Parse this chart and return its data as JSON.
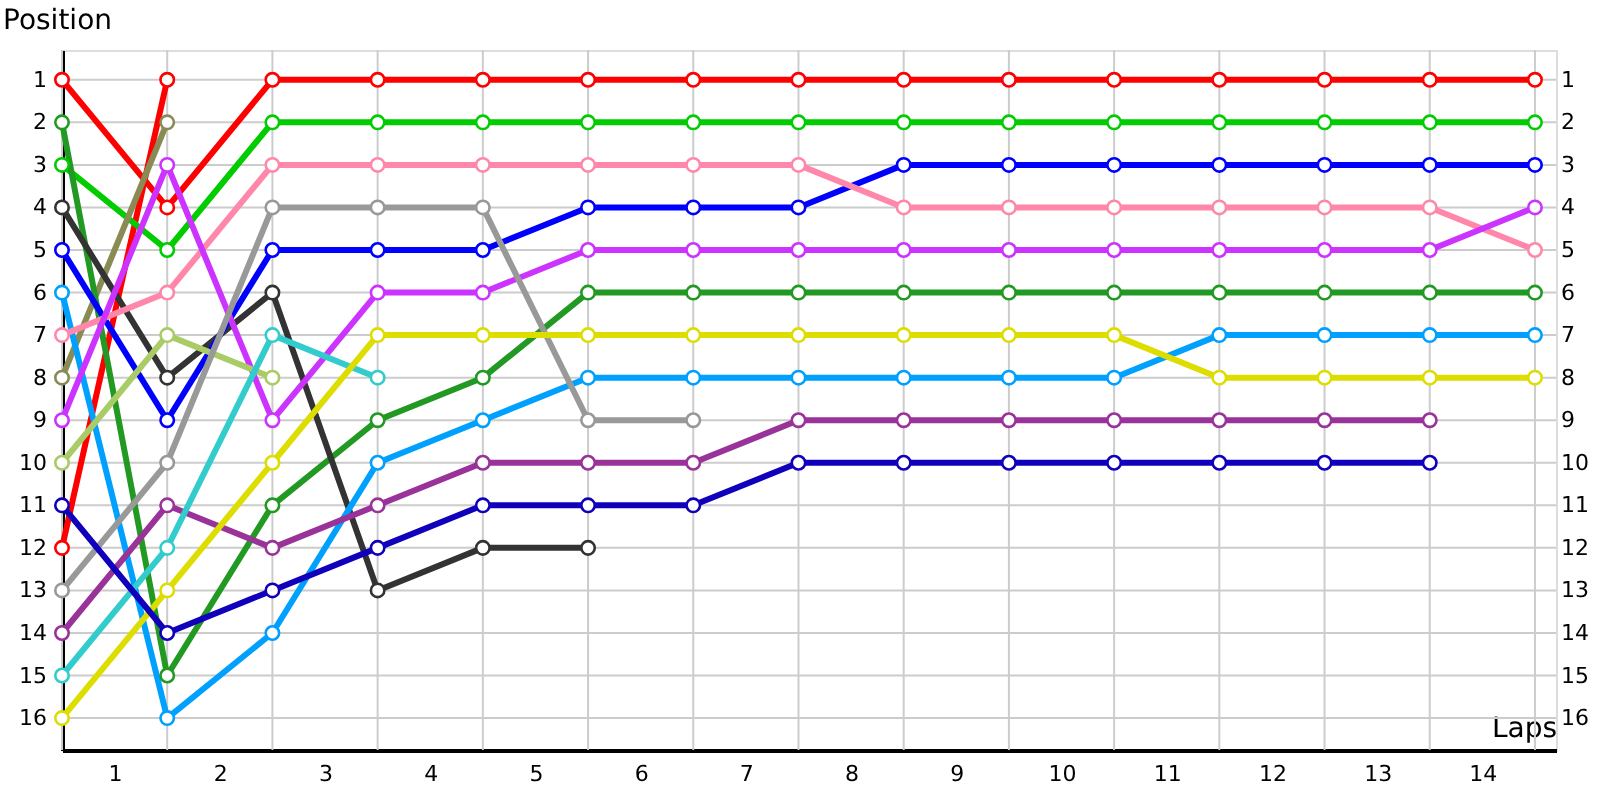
{
  "chart_data": {
    "type": "line",
    "xlabel": "Laps",
    "ylabel": "Position",
    "x": [
      0,
      1,
      2,
      3,
      4,
      5,
      6,
      7,
      8,
      9,
      10,
      11,
      12,
      13,
      14
    ],
    "xlim": [
      0,
      14.2
    ],
    "xticks": [
      {
        "value": 0,
        "label": null
      },
      {
        "value": 0.5,
        "label": "1"
      },
      {
        "value": 1,
        "label": null
      },
      {
        "value": 1.5,
        "label": "2"
      },
      {
        "value": 2,
        "label": null
      },
      {
        "value": 2.5,
        "label": "3"
      },
      {
        "value": 3,
        "label": null
      },
      {
        "value": 3.5,
        "label": "4"
      },
      {
        "value": 4,
        "label": null
      },
      {
        "value": 4.5,
        "label": "5"
      },
      {
        "value": 5,
        "label": null
      },
      {
        "value": 5.5,
        "label": "6"
      },
      {
        "value": 6,
        "label": null
      },
      {
        "value": 6.5,
        "label": "7"
      },
      {
        "value": 7,
        "label": null
      },
      {
        "value": 7.5,
        "label": "8"
      },
      {
        "value": 8,
        "label": null
      },
      {
        "value": 8.5,
        "label": "9"
      },
      {
        "value": 9,
        "label": null
      },
      {
        "value": 9.5,
        "label": "10"
      },
      {
        "value": 10,
        "label": null
      },
      {
        "value": 10.5,
        "label": "11"
      },
      {
        "value": 11,
        "label": null
      },
      {
        "value": 11.5,
        "label": "12"
      },
      {
        "value": 12,
        "label": null
      },
      {
        "value": 12.5,
        "label": "13"
      },
      {
        "value": 13,
        "label": null
      },
      {
        "value": 13.5,
        "label": "14"
      },
      {
        "value": 14,
        "label": null
      }
    ],
    "ylim": [
      16.75,
      0.3
    ],
    "yticks": [
      1,
      2,
      3,
      4,
      5,
      6,
      7,
      8,
      9,
      10,
      11,
      12,
      13,
      14,
      15,
      16
    ],
    "y2lim": [
      16.75,
      0.3
    ],
    "y2ticks": [
      1,
      2,
      3,
      4,
      5,
      6,
      7,
      8,
      9,
      10,
      11,
      12,
      13,
      14,
      15,
      16
    ],
    "grid": true,
    "legend": false,
    "marker": "circle",
    "line_style": "solid",
    "series": [
      {
        "color": "#ff0000",
        "values": [
          1,
          4,
          1,
          1,
          1,
          1,
          1,
          1,
          1,
          1,
          1,
          1,
          1,
          1,
          1
        ]
      },
      {
        "color": "#ff0000",
        "values": [
          12,
          1,
          null,
          null,
          null,
          null,
          null,
          null,
          null,
          null,
          null,
          null,
          null,
          null,
          null
        ]
      },
      {
        "color": "#00cc00",
        "values": [
          3,
          5,
          2,
          2,
          2,
          2,
          2,
          2,
          2,
          2,
          2,
          2,
          2,
          2,
          2
        ]
      },
      {
        "color": "#8a8a55",
        "values": [
          8,
          2,
          null,
          null,
          null,
          null,
          null,
          null,
          null,
          null,
          null,
          null,
          null,
          null,
          null
        ]
      },
      {
        "color": "#229922",
        "values": [
          2,
          15,
          11,
          9,
          8,
          6,
          6,
          6,
          6,
          6,
          6,
          6,
          6,
          6,
          6
        ]
      },
      {
        "color": "#333333",
        "values": [
          4,
          8,
          6,
          13,
          12,
          12,
          null,
          null,
          null,
          null,
          null,
          null,
          null,
          null,
          null
        ]
      },
      {
        "color": "#0000ff",
        "values": [
          5,
          9,
          5,
          5,
          5,
          4,
          4,
          4,
          3,
          3,
          3,
          3,
          3,
          3,
          3
        ]
      },
      {
        "color": "#00a0ff",
        "values": [
          6,
          16,
          14,
          10,
          9,
          8,
          8,
          8,
          8,
          8,
          8,
          7,
          7,
          7,
          7
        ]
      },
      {
        "color": "#ff88aa",
        "values": [
          7,
          6,
          3,
          3,
          3,
          3,
          3,
          3,
          4,
          4,
          4,
          4,
          4,
          4,
          5
        ]
      },
      {
        "color": "#cc33ff",
        "values": [
          9,
          3,
          9,
          6,
          6,
          5,
          5,
          5,
          5,
          5,
          5,
          5,
          5,
          5,
          4
        ]
      },
      {
        "color": "#aacc66",
        "values": [
          10,
          7,
          8,
          null,
          null,
          null,
          null,
          null,
          null,
          null,
          null,
          null,
          null,
          null,
          null
        ]
      },
      {
        "color": "#999999",
        "values": [
          13,
          10,
          4,
          4,
          4,
          9,
          9,
          null,
          null,
          null,
          null,
          null,
          null,
          null,
          null
        ]
      },
      {
        "color": "#993399",
        "values": [
          14,
          11,
          12,
          11,
          10,
          10,
          10,
          9,
          9,
          9,
          9,
          9,
          9,
          9,
          null
        ]
      },
      {
        "color": "#33cccc",
        "values": [
          15,
          12,
          7,
          8,
          null,
          null,
          null,
          null,
          null,
          null,
          null,
          null,
          null,
          null,
          null
        ]
      },
      {
        "color": "#dddd00",
        "values": [
          16,
          13,
          10,
          7,
          7,
          7,
          7,
          7,
          7,
          7,
          7,
          8,
          8,
          8,
          8
        ]
      },
      {
        "color": "#1100bb",
        "values": [
          11,
          14,
          13,
          12,
          11,
          11,
          11,
          10,
          10,
          10,
          10,
          10,
          10,
          10,
          null
        ]
      }
    ]
  }
}
